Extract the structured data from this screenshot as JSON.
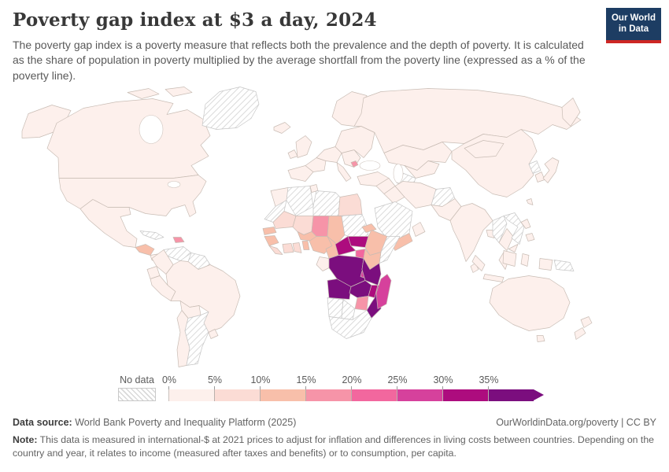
{
  "header": {
    "title": "Poverty gap index at $3 a day, 2024",
    "subtitle": "The poverty gap index is a poverty measure that reflects both the prevalence and the depth of poverty. It is calculated as the share of population in poverty multiplied by the average shortfall from the poverty line (expressed as a % of the poverty line).",
    "logo": {
      "line1": "Our World",
      "line2": "in Data",
      "bg_color": "#1d3d63",
      "bar_color": "#cd2624"
    }
  },
  "legend": {
    "no_data_label": "No data",
    "tick_labels": [
      "0%",
      "5%",
      "10%",
      "15%",
      "20%",
      "25%",
      "30%",
      "35%"
    ],
    "bin_colors": [
      "#fdf0ec",
      "#fbdcd5",
      "#f8bfaa",
      "#f694a8",
      "#f2679e",
      "#d6419c",
      "#ad0c7e",
      "#7b0e7e"
    ],
    "nodata_pattern": "diagonal-hatch"
  },
  "map": {
    "border_color": "#c8bcb4",
    "nodata_border_color": "#c6c6c6",
    "ocean_color": "#ffffff",
    "regions": {
      "alaska": 0,
      "canada": 0,
      "arctic1": 0,
      "arctic2": 0,
      "greenland": "nodata",
      "iceland": 0,
      "usa": 0,
      "mexico": 0,
      "centralam1": 2,
      "centralam2": 0,
      "cuba": "nodata",
      "hispaniola": 3,
      "venezuela": "nodata",
      "guyanas": "nodata",
      "colombia": 0,
      "ecuador": 0,
      "peru": 0,
      "brazil": 0,
      "bolivia": 0,
      "chile": 0,
      "argentina": "nodata",
      "uruguay": 0,
      "scandinavia": 0,
      "uk": 0,
      "ireland": 0,
      "iberia": 0,
      "france": 0,
      "centraleu": 0,
      "italy": 0,
      "balkans": 0,
      "balkandot": 3,
      "easteu": 0,
      "russia": 0,
      "kamchatka": 0,
      "kazakhstan": 0,
      "uzbek": 0,
      "turkmenistan": "nodata",
      "turkey": 0,
      "syria": 0,
      "iraq": 0,
      "iran": 0,
      "afghanistan": "nodata",
      "pakistan": 0,
      "saudi": "nodata",
      "yemen": 2,
      "oman": 0,
      "india": 0,
      "srilanka": 0,
      "bangladesh": 0,
      "myanmar": "nodata",
      "thailand": 0,
      "vietnam": "nodata",
      "cambodia": 0,
      "malay": 0,
      "china": 0,
      "mongolia": 0,
      "nkorea": "nodata",
      "skorea": 0,
      "japan": 0,
      "taiwan": 0,
      "philippines1": 0,
      "philippines2": 0,
      "sumatra": 0,
      "java": 0,
      "borneo": 0,
      "sulawesi": 0,
      "westpapua": 0,
      "png": "nodata",
      "australia": 0,
      "tasmania": 0,
      "nz1": 0,
      "nz2": 0,
      "morocco": 0,
      "wsahara": "nodata",
      "algeria": "nodata",
      "tunisia": 0,
      "libya": "nodata",
      "egypt": 1,
      "mauritania": 1,
      "mali": 1,
      "niger": 3,
      "chad": 2,
      "sudan": "nodata",
      "eritrea": 2,
      "senegal": 2,
      "guinea": 2,
      "liberia": 1,
      "ivorycoast": 1,
      "ghana": 1,
      "burkina": 2,
      "togobenin": 2,
      "nigeria": 2,
      "cameroon": 2,
      "car": 6,
      "ssudan": 6,
      "ethiopia": 2,
      "somalia": "nodata",
      "uganda": 4,
      "kenya": 2,
      "drc": 7,
      "rwanda": 5,
      "congogabon": 0,
      "tanzania": 7,
      "angola": 7,
      "zambia": 7,
      "malawi": 6,
      "mozambique": 7,
      "zimbabwe": 3,
      "namibia": "nodata",
      "botswana": "nodata",
      "southafrica": "nodata",
      "madagascar": 5
    }
  },
  "footer": {
    "source_label": "Data source:",
    "source_value": " World Bank Poverty and Inequality Platform (2025)",
    "link_text": "OurWorldinData.org/poverty | CC BY",
    "note_label": "Note:",
    "note_value": " This data is measured in international-$ at 2021 prices to adjust for inflation and differences in living costs between countries. Depending on the country and year, it relates to income (measured after taxes and benefits) or to consumption, per capita."
  },
  "chart_data": {
    "type": "choropleth_map",
    "title": "Poverty gap index at $3 a day, 2024",
    "unit": "%",
    "legend_position": "bottom",
    "bins": [
      {
        "label": "0%-5%",
        "color": "#fdf0ec"
      },
      {
        "label": "5%-10%",
        "color": "#fbdcd5"
      },
      {
        "label": "10%-15%",
        "color": "#f8bfaa"
      },
      {
        "label": "15%-20%",
        "color": "#f694a8"
      },
      {
        "label": "20%-25%",
        "color": "#f2679e"
      },
      {
        "label": "25%-30%",
        "color": "#d6419c"
      },
      {
        "label": "30%-35%",
        "color": "#ad0c7e"
      },
      {
        "label": "35%+",
        "color": "#7b0e7e"
      },
      {
        "label": "No data",
        "pattern": "hatched"
      }
    ],
    "countries_by_bin": {
      "35%+": [
        "Democratic Republic of Congo",
        "Angola",
        "Zambia",
        "Mozambique",
        "Tanzania"
      ],
      "30-35%": [
        "Central African Republic",
        "South Sudan",
        "Malawi"
      ],
      "25-30%": [
        "Madagascar",
        "Rwanda",
        "Burundi"
      ],
      "20-25%": [
        "Uganda"
      ],
      "15-20%": [
        "Niger",
        "Zimbabwe",
        "Haiti"
      ],
      "10-15%": [
        "Chad",
        "Ethiopia",
        "Kenya",
        "Nigeria",
        "Cameroon",
        "Senegal",
        "Guinea",
        "Burkina Faso",
        "Benin",
        "Eritrea",
        "Yemen",
        "Honduras"
      ],
      "5-10%": [
        "Egypt",
        "Mauritania",
        "Mali",
        "Ghana",
        "Cote d'Ivoire",
        "Liberia"
      ],
      "0-5%": [
        "United States",
        "Canada",
        "Mexico",
        "Brazil",
        "Peru",
        "Colombia",
        "Europe",
        "Russia",
        "China",
        "India",
        "Indonesia",
        "Australia",
        "Japan",
        "Turkey",
        "Iran"
      ],
      "No data": [
        "Greenland",
        "Venezuela",
        "Argentina",
        "Cuba",
        "Algeria",
        "Libya",
        "Western Sahara",
        "Sudan",
        "Somalia",
        "Namibia",
        "Botswana",
        "South Africa",
        "Saudi Arabia",
        "Afghanistan",
        "Turkmenistan",
        "Myanmar",
        "Vietnam",
        "Laos",
        "North Korea",
        "Papua New Guinea"
      ]
    }
  }
}
